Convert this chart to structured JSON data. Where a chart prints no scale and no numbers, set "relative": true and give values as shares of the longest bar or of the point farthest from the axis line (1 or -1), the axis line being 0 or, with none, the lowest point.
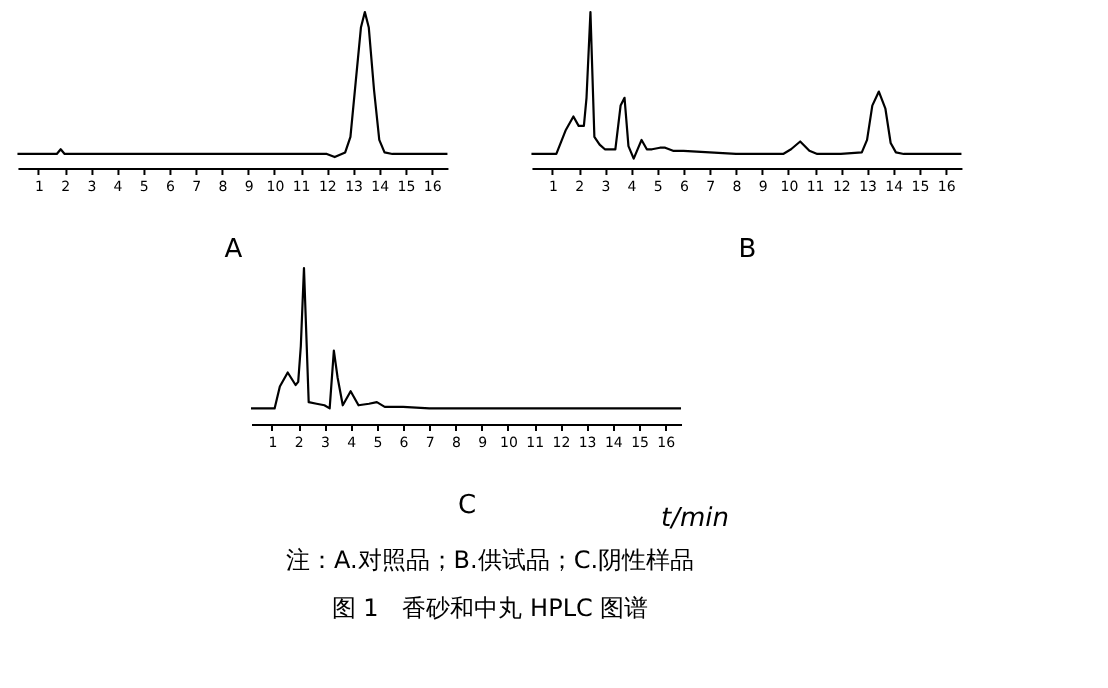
{
  "chart_data": [
    {
      "type": "line",
      "relative": true,
      "xlabel": "A",
      "xlim": [
        0.2,
        16.6
      ],
      "xticks": [
        1,
        2,
        3,
        4,
        5,
        6,
        7,
        8,
        9,
        10,
        11,
        12,
        13,
        14,
        15,
        16
      ],
      "grid": false,
      "marker": "none",
      "line_style": "solid",
      "series": [
        {
          "color": "#000000",
          "x": [
            0.2,
            1.7,
            1.85,
            2.0,
            12.0,
            12.3,
            12.7,
            12.9,
            13.1,
            13.3,
            13.45,
            13.6,
            13.8,
            14.0,
            14.2,
            14.5,
            16.6
          ],
          "values": [
            0.09,
            0.09,
            0.12,
            0.09,
            0.09,
            0.07,
            0.1,
            0.2,
            0.55,
            0.9,
            1.0,
            0.9,
            0.5,
            0.18,
            0.1,
            0.09,
            0.09
          ]
        }
      ]
    },
    {
      "type": "line",
      "relative": true,
      "xlabel": "B",
      "xlim": [
        0.2,
        16.6
      ],
      "xticks": [
        1,
        2,
        3,
        4,
        5,
        6,
        7,
        8,
        9,
        10,
        11,
        12,
        13,
        14,
        15,
        16
      ],
      "grid": false,
      "marker": "none",
      "line_style": "solid",
      "series": [
        {
          "color": "#000000",
          "x": [
            0.2,
            1.15,
            1.5,
            1.8,
            2.0,
            2.2,
            2.3,
            2.45,
            2.6,
            2.8,
            3.0,
            3.4,
            3.6,
            3.75,
            3.9,
            4.1,
            4.4,
            4.6,
            4.8,
            5.1,
            5.3,
            5.6,
            6.0,
            8.0,
            9.8,
            10.1,
            10.45,
            10.8,
            11.1,
            12.0,
            12.8,
            13.0,
            13.2,
            13.45,
            13.7,
            13.9,
            14.1,
            14.4,
            16.6
          ],
          "values": [
            0.09,
            0.09,
            0.24,
            0.33,
            0.27,
            0.27,
            0.45,
            1.0,
            0.2,
            0.15,
            0.12,
            0.12,
            0.4,
            0.45,
            0.14,
            0.06,
            0.18,
            0.12,
            0.12,
            0.13,
            0.13,
            0.11,
            0.11,
            0.09,
            0.09,
            0.12,
            0.17,
            0.11,
            0.09,
            0.09,
            0.1,
            0.18,
            0.4,
            0.49,
            0.38,
            0.16,
            0.1,
            0.09,
            0.09
          ]
        }
      ]
    },
    {
      "type": "line",
      "relative": true,
      "xlabel": "C",
      "xlim": [
        0.2,
        16.6
      ],
      "xticks": [
        1,
        2,
        3,
        4,
        5,
        6,
        7,
        8,
        9,
        10,
        11,
        12,
        13,
        14,
        15,
        16
      ],
      "grid": false,
      "marker": "none",
      "line_style": "solid",
      "annotations": [
        "t/min",
        "注：A.对照品；B.供试品；C.阴性样品",
        "图 1　香砂和中丸 HPLC 图谱"
      ],
      "series": [
        {
          "color": "#000000",
          "x": [
            0.2,
            1.1,
            1.3,
            1.6,
            1.9,
            2.0,
            2.1,
            2.22,
            2.4,
            2.7,
            3.0,
            3.2,
            3.36,
            3.5,
            3.7,
            4.0,
            4.3,
            4.7,
            5.0,
            5.3,
            6.0,
            7.0,
            16.6
          ],
          "values": [
            0.1,
            0.1,
            0.24,
            0.33,
            0.25,
            0.27,
            0.5,
            1.0,
            0.14,
            0.13,
            0.12,
            0.1,
            0.47,
            0.3,
            0.12,
            0.21,
            0.12,
            0.13,
            0.14,
            0.11,
            0.11,
            0.1,
            0.1
          ]
        }
      ]
    }
  ]
}
